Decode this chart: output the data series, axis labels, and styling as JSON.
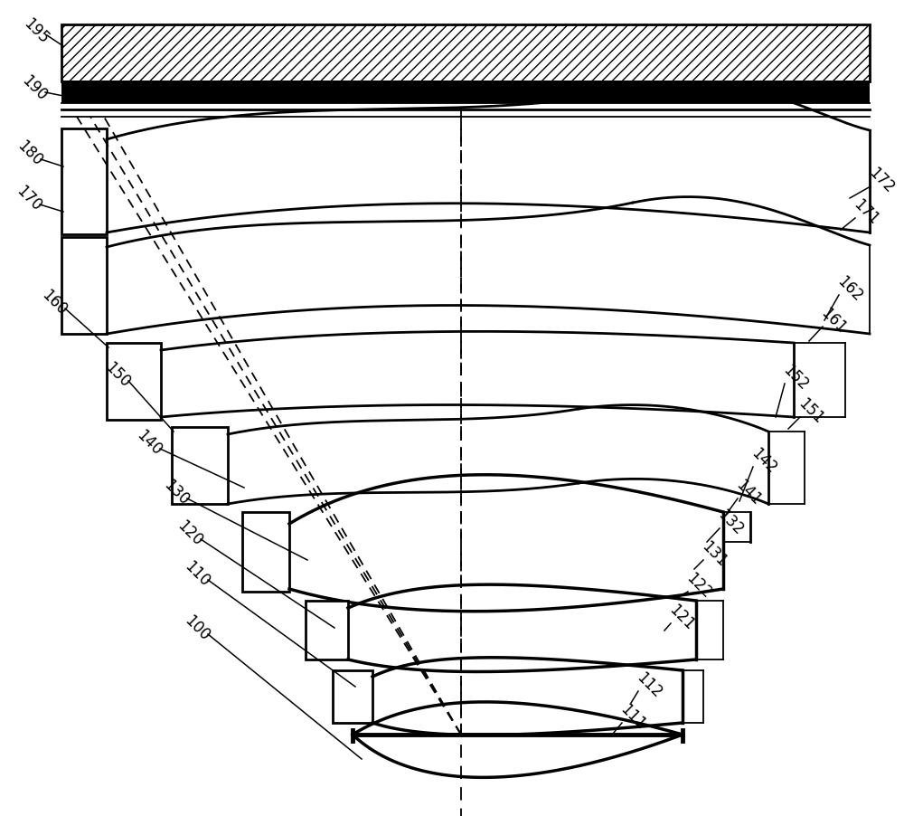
{
  "bg": "#ffffff",
  "lc": "#000000",
  "fw": 10.0,
  "fh": 9.03,
  "dpi": 100,
  "lw_thick": 2.5,
  "lw_med": 2.0,
  "lw_thin": 1.3,
  "lw_label": 1.1
}
